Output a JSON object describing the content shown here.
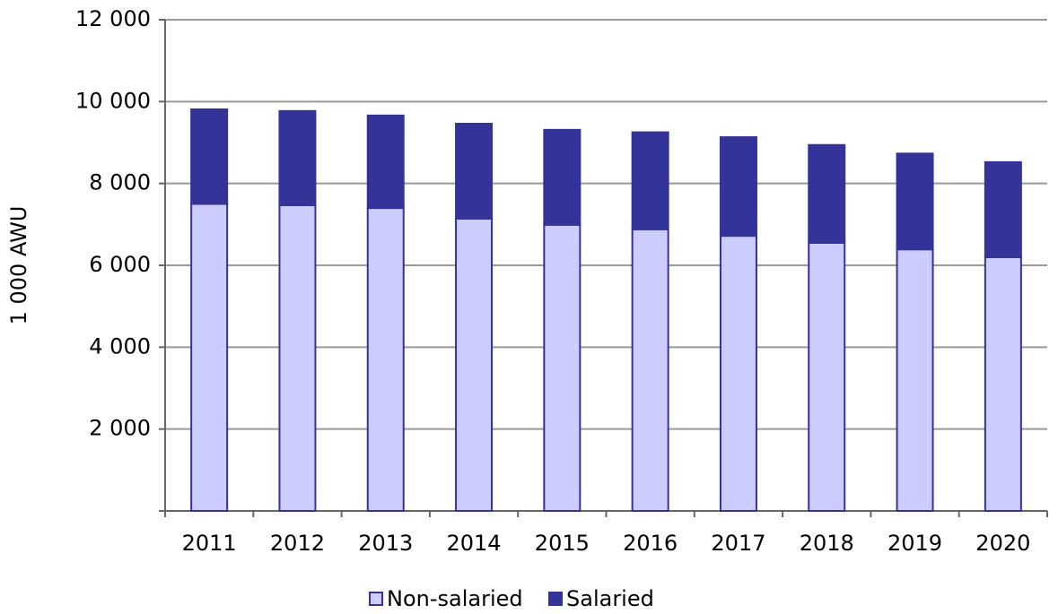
{
  "chart_data": {
    "type": "stacked_bar",
    "y_label": "1 000 AWU",
    "categories": [
      "2011",
      "2012",
      "2013",
      "2014",
      "2015",
      "2016",
      "2017",
      "2018",
      "2019",
      "2020"
    ],
    "series": [
      {
        "name": "Non-salaried",
        "color": "#ccccff",
        "values": [
          7500,
          7470,
          7400,
          7140,
          6990,
          6880,
          6720,
          6550,
          6390,
          6200
        ]
      },
      {
        "name": "Salaried",
        "color": "#333399",
        "values": [
          2310,
          2300,
          2260,
          2320,
          2320,
          2370,
          2410,
          2390,
          2340,
          2320
        ]
      }
    ],
    "ylim": [
      0,
      12000
    ],
    "yticks": [
      {
        "value": 2000,
        "label": "2 000"
      },
      {
        "value": 4000,
        "label": "4 000"
      },
      {
        "value": 6000,
        "label": "6 000"
      },
      {
        "value": 8000,
        "label": "8 000"
      },
      {
        "value": 10000,
        "label": "10 000"
      },
      {
        "value": 12000,
        "label": "12 000"
      }
    ],
    "grid": true,
    "legend": "bottom"
  }
}
